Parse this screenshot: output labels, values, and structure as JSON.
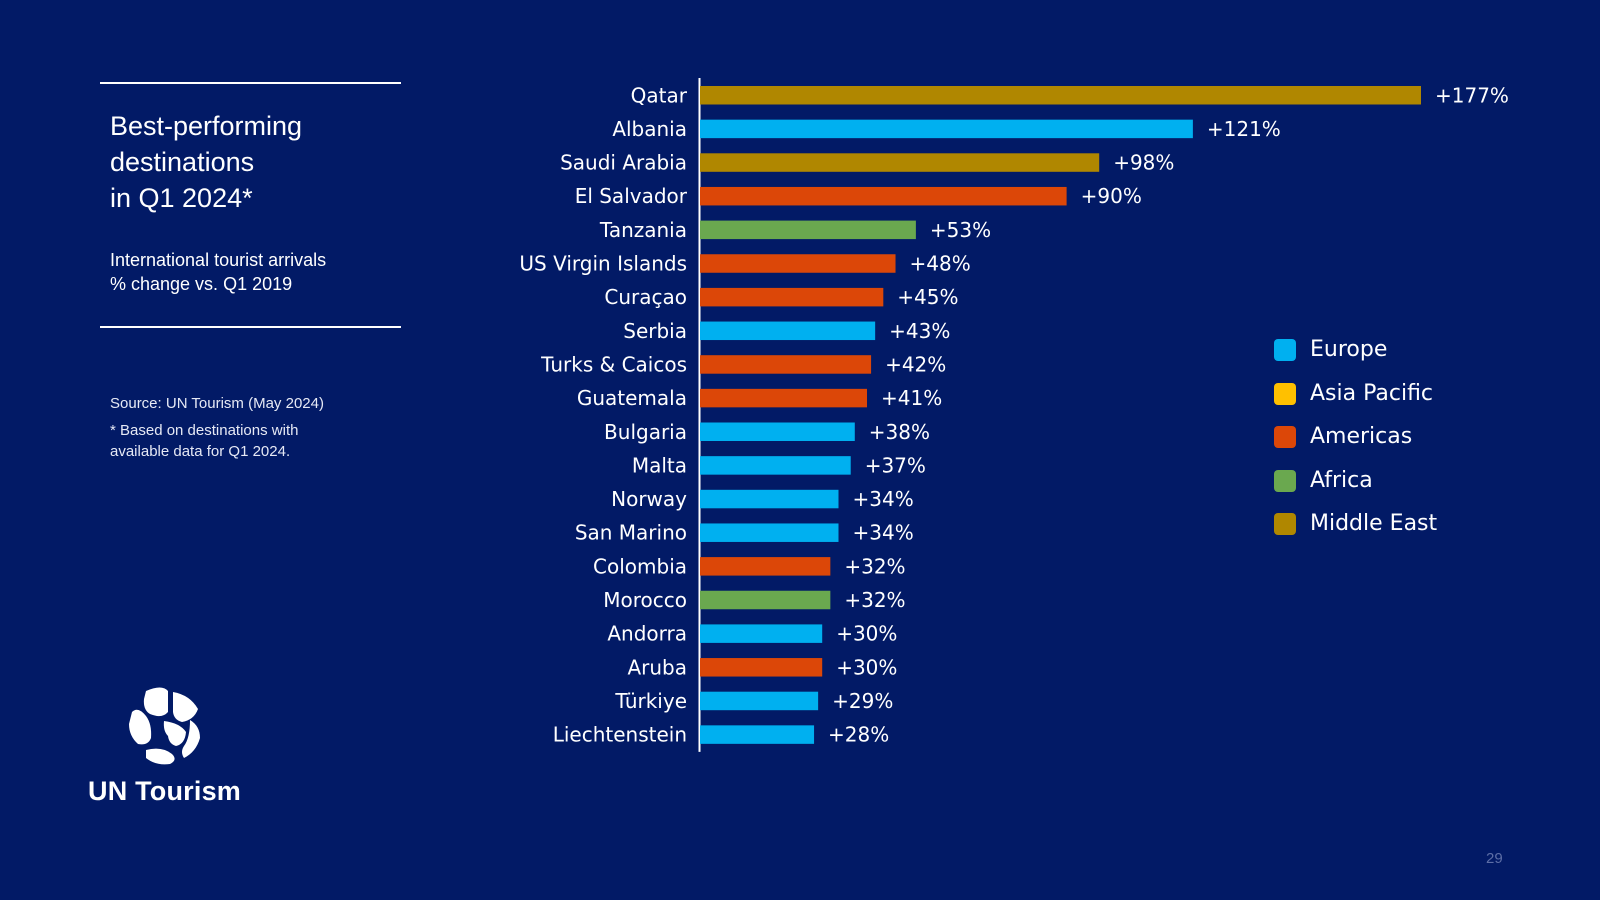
{
  "slide": {
    "title_lines": [
      "Best-performing",
      "destinations",
      "in Q1 2024*"
    ],
    "subtitle_lines": [
      "International tourist arrivals",
      "% change vs. Q1 2019"
    ],
    "source": "Source: UN Tourism (May 2024)",
    "footnote_lines": [
      "* Based on destinations with",
      "available data for Q1 2024."
    ],
    "logo_text": "UN Tourism",
    "page_number": "29"
  },
  "colors": {
    "background": "#021a66",
    "Europe": "#00b0f0",
    "Asia Pacific": "#ffc000",
    "Americas": "#dc4708",
    "Africa": "#6aa84f",
    "Middle East": "#b08700"
  },
  "chart_data": {
    "type": "bar",
    "orientation": "horizontal",
    "categories": [
      "Qatar",
      "Albania",
      "Saudi Arabia",
      "El Salvador",
      "Tanzania",
      "US Virgin Islands",
      "Curaçao",
      "Serbia",
      "Turks & Caicos",
      "Guatemala",
      "Bulgaria",
      "Malta",
      "Norway",
      "San Marino",
      "Colombia",
      "Morocco",
      "Andorra",
      "Aruba",
      "Türkiye",
      "Liechtenstein"
    ],
    "values": [
      177,
      121,
      98,
      90,
      53,
      48,
      45,
      43,
      42,
      41,
      38,
      37,
      34,
      34,
      32,
      32,
      30,
      30,
      29,
      28
    ],
    "value_labels": [
      "+177%",
      "+121%",
      "+98%",
      "+90%",
      "+53%",
      "+48%",
      "+45%",
      "+43%",
      "+42%",
      "+41%",
      "+38%",
      "+37%",
      "+34%",
      "+34%",
      "+32%",
      "+32%",
      "+30%",
      "+30%",
      "+29%",
      "+28%"
    ],
    "regions": [
      "Middle East",
      "Europe",
      "Middle East",
      "Americas",
      "Africa",
      "Americas",
      "Americas",
      "Europe",
      "Americas",
      "Americas",
      "Europe",
      "Europe",
      "Europe",
      "Europe",
      "Americas",
      "Africa",
      "Europe",
      "Americas",
      "Europe",
      "Europe"
    ],
    "legend": [
      "Europe",
      "Asia Pacific",
      "Americas",
      "Africa",
      "Middle East"
    ],
    "legend_position": "right",
    "xlim": [
      0,
      177
    ],
    "grid": false,
    "title": "",
    "xlabel": "",
    "ylabel": ""
  }
}
